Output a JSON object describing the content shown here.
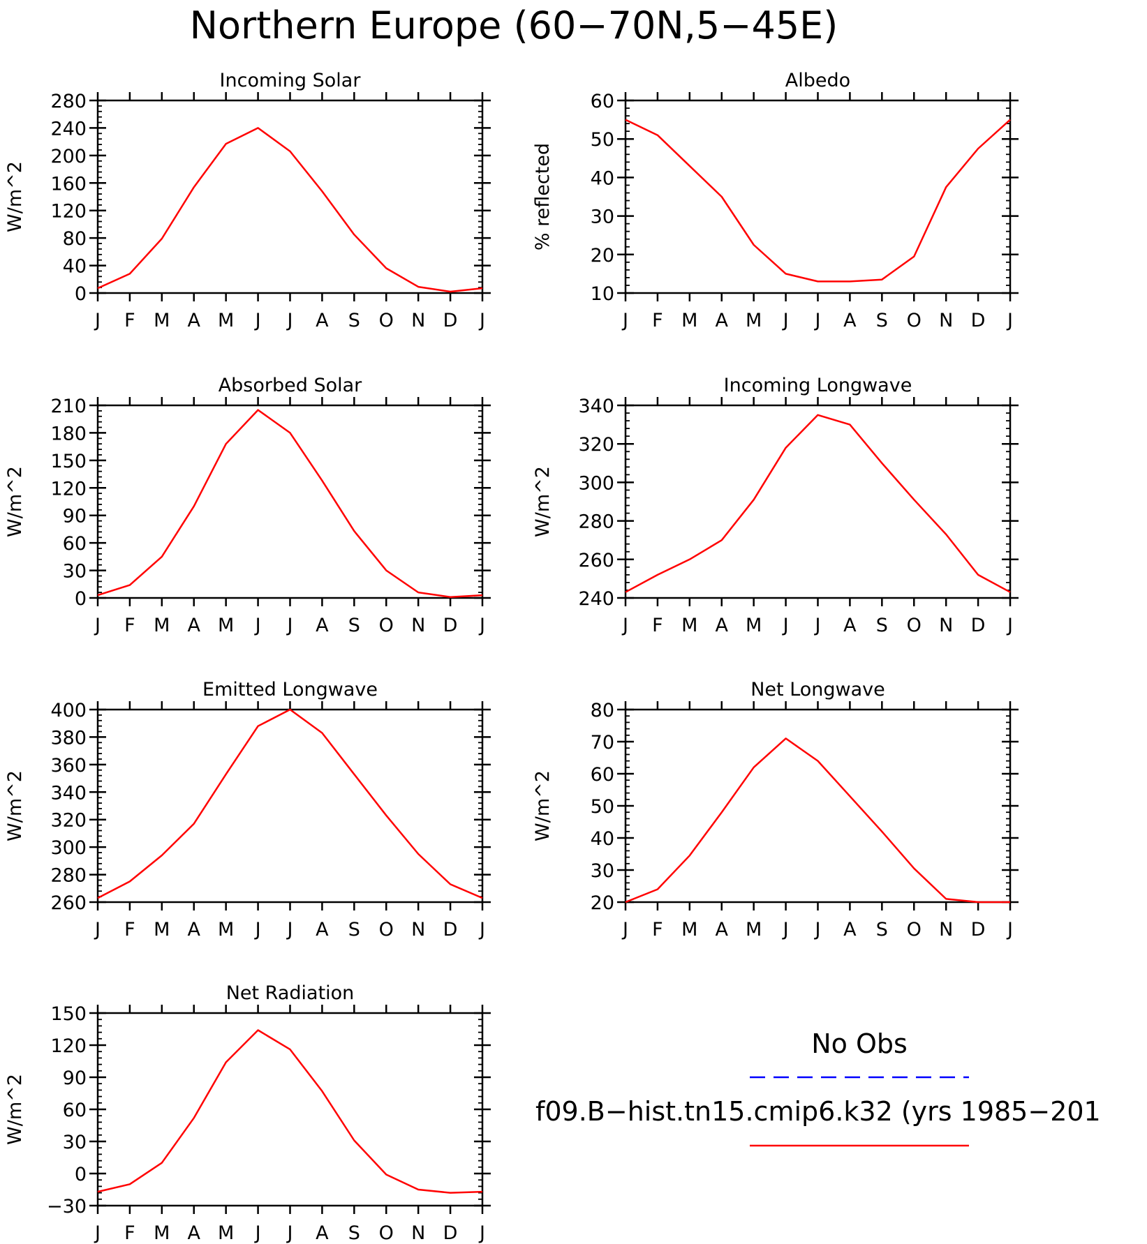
{
  "figure": {
    "title": "Northern Europe (60−70N,5−45E)"
  },
  "months": [
    "J",
    "F",
    "M",
    "A",
    "M",
    "J",
    "J",
    "A",
    "S",
    "O",
    "N",
    "D",
    "J"
  ],
  "colors": {
    "model": "#ff0000",
    "obs": "#0000ff"
  },
  "legend": {
    "obs_label": "No Obs",
    "model_label": "f09.B−hist.tn15.cmip6.k32 (yrs 1985−201"
  },
  "chart_data": [
    {
      "type": "line",
      "title": "Incoming Solar",
      "ylabel": "W/m^2",
      "xlabel": "",
      "categories": [
        "J",
        "F",
        "M",
        "A",
        "M",
        "J",
        "J",
        "A",
        "S",
        "O",
        "N",
        "D",
        "J"
      ],
      "ylim": [
        0,
        280
      ],
      "yticks": [
        0,
        40,
        80,
        120,
        160,
        200,
        240,
        280
      ],
      "series": [
        {
          "values": [
            7,
            28,
            79,
            154,
            217,
            240,
            206,
            148,
            85,
            36,
            9,
            2,
            7
          ]
        }
      ]
    },
    {
      "type": "line",
      "title": "Albedo",
      "ylabel": "% reflected",
      "xlabel": "",
      "categories": [
        "J",
        "F",
        "M",
        "A",
        "M",
        "J",
        "J",
        "A",
        "S",
        "O",
        "N",
        "D",
        "J"
      ],
      "ylim": [
        10,
        60
      ],
      "yticks": [
        10,
        20,
        30,
        40,
        50,
        60
      ],
      "series": [
        {
          "values": [
            55,
            51,
            43,
            35,
            22.5,
            15,
            13,
            13,
            13.5,
            19.5,
            37.5,
            47.5,
            55
          ]
        }
      ]
    },
    {
      "type": "line",
      "title": "Absorbed Solar",
      "ylabel": "W/m^2",
      "xlabel": "",
      "categories": [
        "J",
        "F",
        "M",
        "A",
        "M",
        "J",
        "J",
        "A",
        "S",
        "O",
        "N",
        "D",
        "J"
      ],
      "ylim": [
        0,
        210
      ],
      "yticks": [
        0,
        30,
        60,
        90,
        120,
        150,
        180,
        210
      ],
      "series": [
        {
          "values": [
            3,
            14,
            45,
            100,
            168,
            205,
            180,
            128,
            73,
            30,
            6,
            1,
            3
          ]
        }
      ]
    },
    {
      "type": "line",
      "title": "Incoming Longwave",
      "ylabel": "W/m^2",
      "xlabel": "",
      "categories": [
        "J",
        "F",
        "M",
        "A",
        "M",
        "J",
        "J",
        "A",
        "S",
        "O",
        "N",
        "D",
        "J"
      ],
      "ylim": [
        240,
        340
      ],
      "yticks": [
        240,
        260,
        280,
        300,
        320,
        340
      ],
      "series": [
        {
          "values": [
            243,
            252,
            260,
            270,
            291,
            318,
            335,
            330,
            310,
            291,
            273,
            252,
            243
          ]
        }
      ]
    },
    {
      "type": "line",
      "title": "Emitted Longwave",
      "ylabel": "W/m^2",
      "xlabel": "",
      "categories": [
        "J",
        "F",
        "M",
        "A",
        "M",
        "J",
        "J",
        "A",
        "S",
        "O",
        "N",
        "D",
        "J"
      ],
      "ylim": [
        260,
        400
      ],
      "yticks": [
        260,
        280,
        300,
        320,
        340,
        360,
        380,
        400
      ],
      "series": [
        {
          "values": [
            263,
            275,
            294,
            317,
            353,
            388,
            400,
            383,
            353,
            323,
            295,
            273,
            263
          ]
        }
      ]
    },
    {
      "type": "line",
      "title": "Net Longwave",
      "ylabel": "W/m^2",
      "xlabel": "",
      "categories": [
        "J",
        "F",
        "M",
        "A",
        "M",
        "J",
        "J",
        "A",
        "S",
        "O",
        "N",
        "D",
        "J"
      ],
      "ylim": [
        20,
        80
      ],
      "yticks": [
        20,
        30,
        40,
        50,
        60,
        70,
        80
      ],
      "series": [
        {
          "values": [
            20,
            24,
            34.5,
            48,
            62,
            71,
            64,
            53,
            42,
            30.5,
            21,
            20,
            20
          ]
        }
      ]
    },
    {
      "type": "line",
      "title": "Net Radiation",
      "ylabel": "W/m^2",
      "xlabel": "",
      "categories": [
        "J",
        "F",
        "M",
        "A",
        "M",
        "J",
        "J",
        "A",
        "S",
        "O",
        "N",
        "D",
        "J"
      ],
      "ylim": [
        -30,
        150
      ],
      "yticks": [
        -30,
        0,
        30,
        60,
        90,
        120,
        150
      ],
      "series": [
        {
          "values": [
            -17,
            -10,
            10,
            52,
            104,
            134,
            116,
            77,
            31,
            -1,
            -15,
            -18,
            -17
          ]
        }
      ]
    }
  ]
}
